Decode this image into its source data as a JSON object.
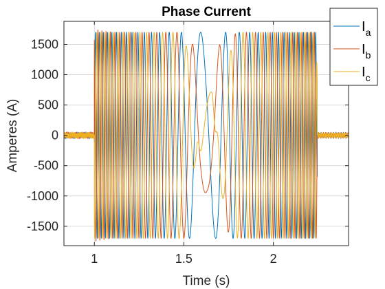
{
  "chart_data": {
    "type": "line",
    "title": "Phase Current",
    "xlabel": "Time (s)",
    "ylabel": "Amperes (A)",
    "xlim": [
      0.83,
      2.42
    ],
    "ylim": [
      -1820,
      1880
    ],
    "xticks": [
      1,
      1.5,
      2
    ],
    "xtick_labels": [
      "1",
      "1.5",
      "2"
    ],
    "yticks": [
      1500,
      1000,
      500,
      0,
      -500,
      -1000,
      -1500
    ],
    "ytick_labels": [
      "1500",
      "1000",
      "500",
      "0",
      "-500",
      "-1000",
      "-1500"
    ],
    "grid": true,
    "legend_position": "top-right",
    "series": [
      {
        "name": "I",
        "subscript": "a",
        "color": "#0072BD",
        "x": [
          0.83,
          0.99,
          1.0,
          1.1,
          1.2,
          1.3,
          1.4,
          1.5,
          1.55,
          1.6,
          1.63,
          1.66,
          1.7,
          1.8,
          1.9,
          2.0,
          2.1,
          2.2,
          2.24,
          2.25,
          2.42
        ],
        "y": [
          0,
          0,
          1700,
          1700,
          1700,
          1700,
          1700,
          1700,
          1700,
          1700,
          1720,
          1700,
          1700,
          1700,
          1700,
          1700,
          1700,
          1700,
          1700,
          0,
          0
        ]
      },
      {
        "name": "I",
        "subscript": "b",
        "color": "#D95319",
        "x": [
          0.83,
          0.99,
          1.0,
          1.1,
          1.2,
          1.3,
          1.4,
          1.5,
          1.55,
          1.6,
          1.63,
          1.66,
          1.7,
          1.8,
          1.9,
          2.0,
          2.1,
          2.2,
          2.24,
          2.25,
          2.42
        ],
        "y": [
          0,
          0,
          -1750,
          -1700,
          -1700,
          -1700,
          -1700,
          -1700,
          -1500,
          -1000,
          -930,
          -1000,
          -1500,
          -1700,
          -1700,
          -1700,
          -1700,
          -1700,
          -1700,
          0,
          0
        ]
      },
      {
        "name": "I",
        "subscript": "c",
        "color": "#EDB120",
        "x": [
          0.83,
          0.99,
          1.0,
          1.1,
          1.2,
          1.3,
          1.4,
          1.5,
          1.55,
          1.6,
          1.63,
          1.66,
          1.7,
          1.8,
          1.9,
          2.0,
          2.1,
          2.2,
          2.24,
          2.25,
          2.42
        ],
        "y": [
          0,
          0,
          1700,
          1700,
          1700,
          1700,
          1700,
          1700,
          900,
          -700,
          -760,
          -700,
          900,
          1700,
          1700,
          1700,
          1700,
          1700,
          1700,
          0,
          0
        ]
      }
    ]
  }
}
